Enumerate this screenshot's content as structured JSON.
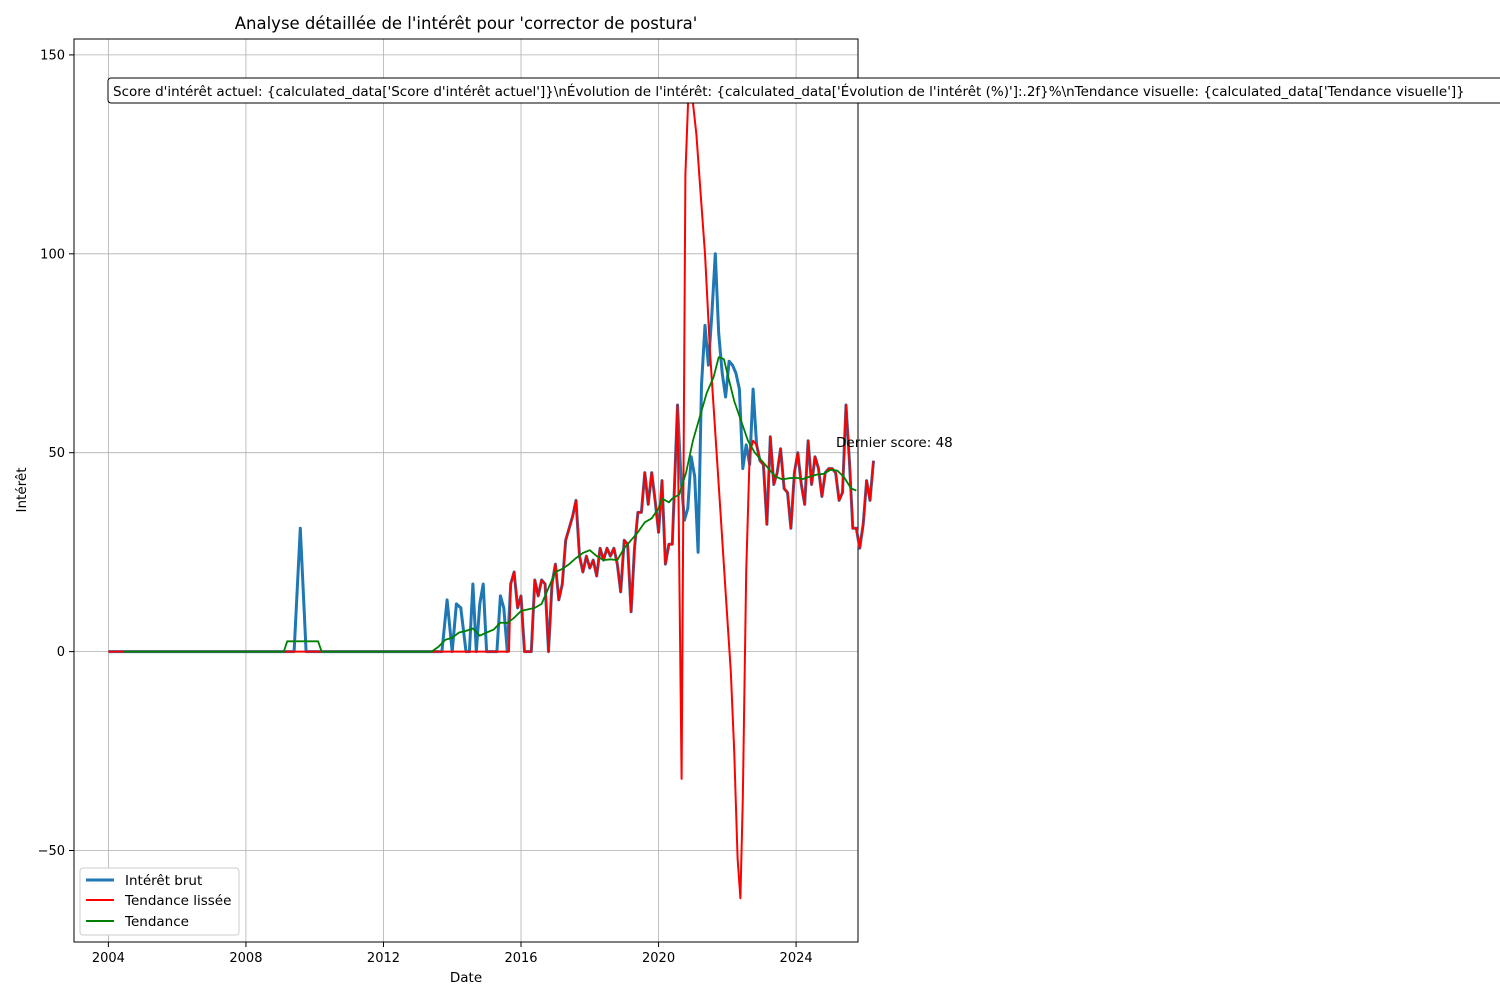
{
  "chart_data": {
    "type": "line",
    "title": "Analyse détaillée de l'intérêt pour 'corrector de postura'",
    "xlabel": "Date",
    "ylabel": "Intérêt",
    "xlim": [
      2003.0,
      2025.8
    ],
    "ylim": [
      -73,
      154
    ],
    "xticks": [
      2004,
      2008,
      2012,
      2016,
      2020,
      2024
    ],
    "yticks": [
      -50,
      0,
      50,
      100,
      150
    ],
    "grid": true,
    "legend_position": "lower-left",
    "annotation_box": "Score d'intérêt actuel: {calculated_data['Score d'intérêt actuel']}\\nÉvolution de l'intérêt: {calculated_data['Évolution de l'intérêt (%)']:.2f}%\\nTendance visuelle: {calculated_data['Tendance visuelle']}",
    "last_score_label": "Dernier score: 48",
    "series": [
      {
        "name": "Intérêt brut",
        "color": "#1f77b4",
        "points": [
          [
            2004.0,
            0
          ],
          [
            2009.4,
            0
          ],
          [
            2009.58,
            31
          ],
          [
            2009.75,
            0
          ],
          [
            2013.7,
            0
          ],
          [
            2013.85,
            13
          ],
          [
            2014.0,
            0
          ],
          [
            2014.12,
            12
          ],
          [
            2014.25,
            11
          ],
          [
            2014.4,
            0
          ],
          [
            2014.5,
            0
          ],
          [
            2014.6,
            17
          ],
          [
            2014.7,
            0
          ],
          [
            2014.8,
            12
          ],
          [
            2014.9,
            17
          ],
          [
            2015.0,
            0
          ],
          [
            2015.3,
            0
          ],
          [
            2015.4,
            14
          ],
          [
            2015.5,
            11
          ],
          [
            2015.6,
            0
          ],
          [
            2015.7,
            17
          ],
          [
            2015.8,
            20
          ],
          [
            2015.9,
            11
          ],
          [
            2016.0,
            14
          ],
          [
            2016.1,
            0
          ],
          [
            2016.3,
            0
          ],
          [
            2016.4,
            18
          ],
          [
            2016.5,
            14
          ],
          [
            2016.6,
            18
          ],
          [
            2016.7,
            17
          ],
          [
            2016.8,
            0
          ],
          [
            2016.9,
            17
          ],
          [
            2017.0,
            22
          ],
          [
            2017.1,
            13
          ],
          [
            2017.2,
            17
          ],
          [
            2017.3,
            28
          ],
          [
            2017.5,
            34
          ],
          [
            2017.6,
            38
          ],
          [
            2017.7,
            24
          ],
          [
            2017.8,
            20
          ],
          [
            2017.9,
            24
          ],
          [
            2018.0,
            21
          ],
          [
            2018.1,
            23
          ],
          [
            2018.2,
            19
          ],
          [
            2018.3,
            26
          ],
          [
            2018.4,
            23
          ],
          [
            2018.5,
            26
          ],
          [
            2018.6,
            24
          ],
          [
            2018.7,
            26
          ],
          [
            2018.8,
            22
          ],
          [
            2018.9,
            15
          ],
          [
            2019.0,
            28
          ],
          [
            2019.1,
            27
          ],
          [
            2019.2,
            10
          ],
          [
            2019.3,
            26
          ],
          [
            2019.4,
            35
          ],
          [
            2019.5,
            35
          ],
          [
            2019.6,
            45
          ],
          [
            2019.7,
            37
          ],
          [
            2019.8,
            45
          ],
          [
            2019.9,
            38
          ],
          [
            2020.0,
            30
          ],
          [
            2020.1,
            43
          ],
          [
            2020.2,
            22
          ],
          [
            2020.3,
            27
          ],
          [
            2020.4,
            27
          ],
          [
            2020.55,
            62
          ],
          [
            2020.65,
            44
          ],
          [
            2020.75,
            33
          ],
          [
            2020.85,
            36
          ],
          [
            2020.95,
            49
          ],
          [
            2021.05,
            44
          ],
          [
            2021.15,
            25
          ],
          [
            2021.25,
            67
          ],
          [
            2021.35,
            82
          ],
          [
            2021.45,
            72
          ],
          [
            2021.55,
            85
          ],
          [
            2021.65,
            100
          ],
          [
            2021.75,
            80
          ],
          [
            2021.85,
            70
          ],
          [
            2021.95,
            64
          ],
          [
            2022.05,
            73
          ],
          [
            2022.15,
            72
          ],
          [
            2022.25,
            70
          ],
          [
            2022.35,
            66
          ],
          [
            2022.45,
            46
          ],
          [
            2022.55,
            52
          ],
          [
            2022.65,
            47
          ],
          [
            2022.75,
            66
          ],
          [
            2022.85,
            52
          ],
          [
            2022.95,
            48
          ],
          [
            2023.05,
            47
          ],
          [
            2023.15,
            32
          ],
          [
            2023.25,
            54
          ],
          [
            2023.35,
            42
          ],
          [
            2023.45,
            45
          ],
          [
            2023.55,
            51
          ],
          [
            2023.65,
            41
          ],
          [
            2023.75,
            40
          ],
          [
            2023.85,
            31
          ],
          [
            2023.95,
            45
          ],
          [
            2024.05,
            50
          ],
          [
            2024.15,
            42
          ],
          [
            2024.25,
            37
          ],
          [
            2024.35,
            53
          ],
          [
            2024.45,
            42
          ],
          [
            2024.55,
            49
          ],
          [
            2024.65,
            46
          ],
          [
            2024.75,
            39
          ],
          [
            2024.85,
            45
          ],
          [
            2024.95,
            46
          ],
          [
            2025.05,
            46
          ],
          [
            2025.15,
            45
          ],
          [
            2025.25,
            38
          ],
          [
            2025.35,
            40
          ],
          [
            2025.45,
            62
          ],
          [
            2025.55,
            48
          ],
          [
            2025.65,
            31
          ],
          [
            2025.75,
            31
          ],
          [
            2025.85,
            26
          ],
          [
            2025.95,
            32
          ],
          [
            2026.05,
            43
          ],
          [
            2026.15,
            38
          ],
          [
            2026.25,
            48
          ]
        ]
      },
      {
        "name": "Tendance lissée",
        "color": "#ff0000",
        "points": [
          [
            2004.0,
            0
          ],
          [
            2015.65,
            0
          ],
          [
            2015.7,
            17
          ],
          [
            2015.8,
            20
          ],
          [
            2015.9,
            11
          ],
          [
            2016.0,
            14
          ],
          [
            2016.1,
            0
          ],
          [
            2016.3,
            0
          ],
          [
            2016.4,
            18
          ],
          [
            2016.5,
            14
          ],
          [
            2016.6,
            18
          ],
          [
            2016.7,
            17
          ],
          [
            2016.8,
            0
          ],
          [
            2016.9,
            17
          ],
          [
            2017.0,
            22
          ],
          [
            2017.1,
            13
          ],
          [
            2017.2,
            17
          ],
          [
            2017.3,
            28
          ],
          [
            2017.5,
            34
          ],
          [
            2017.6,
            38
          ],
          [
            2017.7,
            24
          ],
          [
            2017.8,
            20
          ],
          [
            2017.9,
            24
          ],
          [
            2018.0,
            21
          ],
          [
            2018.1,
            23
          ],
          [
            2018.2,
            19
          ],
          [
            2018.3,
            26
          ],
          [
            2018.4,
            23
          ],
          [
            2018.5,
            26
          ],
          [
            2018.6,
            24
          ],
          [
            2018.7,
            26
          ],
          [
            2018.8,
            22
          ],
          [
            2018.9,
            15
          ],
          [
            2019.0,
            28
          ],
          [
            2019.1,
            27
          ],
          [
            2019.2,
            10
          ],
          [
            2019.3,
            26
          ],
          [
            2019.4,
            35
          ],
          [
            2019.5,
            35
          ],
          [
            2019.6,
            45
          ],
          [
            2019.7,
            37
          ],
          [
            2019.8,
            45
          ],
          [
            2019.9,
            38
          ],
          [
            2020.0,
            30
          ],
          [
            2020.1,
            43
          ],
          [
            2020.2,
            22
          ],
          [
            2020.3,
            27
          ],
          [
            2020.4,
            27
          ],
          [
            2020.55,
            62
          ],
          [
            2020.67,
            -32
          ],
          [
            2020.78,
            120
          ],
          [
            2020.88,
            143
          ],
          [
            2021.0,
            138
          ],
          [
            2021.1,
            130
          ],
          [
            2021.2,
            118
          ],
          [
            2021.35,
            100
          ],
          [
            2021.5,
            75
          ],
          [
            2021.65,
            55
          ],
          [
            2021.8,
            35
          ],
          [
            2021.95,
            15
          ],
          [
            2022.1,
            -5
          ],
          [
            2022.2,
            -25
          ],
          [
            2022.3,
            -52
          ],
          [
            2022.38,
            -62
          ],
          [
            2022.45,
            -37
          ],
          [
            2022.55,
            20
          ],
          [
            2022.65,
            50
          ],
          [
            2022.75,
            53
          ],
          [
            2022.85,
            52
          ],
          [
            2022.95,
            48
          ],
          [
            2023.05,
            47
          ],
          [
            2023.15,
            32
          ],
          [
            2023.25,
            54
          ],
          [
            2023.35,
            42
          ],
          [
            2023.45,
            45
          ],
          [
            2023.55,
            51
          ],
          [
            2023.65,
            41
          ],
          [
            2023.75,
            40
          ],
          [
            2023.85,
            31
          ],
          [
            2023.95,
            45
          ],
          [
            2024.05,
            50
          ],
          [
            2024.15,
            42
          ],
          [
            2024.25,
            37
          ],
          [
            2024.35,
            53
          ],
          [
            2024.45,
            42
          ],
          [
            2024.55,
            49
          ],
          [
            2024.65,
            46
          ],
          [
            2024.75,
            39
          ],
          [
            2024.85,
            45
          ],
          [
            2024.95,
            46
          ],
          [
            2025.05,
            46
          ],
          [
            2025.15,
            45
          ],
          [
            2025.25,
            38
          ],
          [
            2025.35,
            40
          ],
          [
            2025.45,
            62
          ],
          [
            2025.55,
            48
          ],
          [
            2025.65,
            31
          ],
          [
            2025.75,
            31
          ],
          [
            2025.85,
            26
          ],
          [
            2025.95,
            32
          ],
          [
            2026.05,
            43
          ],
          [
            2026.15,
            38
          ],
          [
            2026.25,
            48
          ]
        ]
      },
      {
        "name": "Tendance",
        "color": "#008000",
        "points": [
          [
            2004.45,
            0
          ],
          [
            2009.1,
            0
          ],
          [
            2009.2,
            2.6
          ],
          [
            2010.1,
            2.6
          ],
          [
            2010.2,
            0
          ],
          [
            2013.4,
            0
          ],
          [
            2013.6,
            1.2
          ],
          [
            2013.8,
            3
          ],
          [
            2014.0,
            3.5
          ],
          [
            2014.2,
            4.8
          ],
          [
            2014.4,
            5.2
          ],
          [
            2014.6,
            5.8
          ],
          [
            2014.8,
            4.0
          ],
          [
            2015.0,
            4.8
          ],
          [
            2015.2,
            5.5
          ],
          [
            2015.4,
            7.3
          ],
          [
            2015.6,
            7.2
          ],
          [
            2015.8,
            8.5
          ],
          [
            2016.0,
            10.2
          ],
          [
            2016.2,
            10.6
          ],
          [
            2016.4,
            11
          ],
          [
            2016.6,
            12
          ],
          [
            2016.8,
            16
          ],
          [
            2017.0,
            20
          ],
          [
            2017.2,
            20.8
          ],
          [
            2017.4,
            22
          ],
          [
            2017.6,
            23.5
          ],
          [
            2017.8,
            24.8
          ],
          [
            2018.0,
            25.5
          ],
          [
            2018.2,
            24
          ],
          [
            2018.4,
            23
          ],
          [
            2018.6,
            23.2
          ],
          [
            2018.8,
            23
          ],
          [
            2019.0,
            26
          ],
          [
            2019.2,
            28
          ],
          [
            2019.4,
            30
          ],
          [
            2019.6,
            32.5
          ],
          [
            2019.8,
            33.5
          ],
          [
            2020.0,
            36
          ],
          [
            2020.1,
            38.5
          ],
          [
            2020.2,
            38
          ],
          [
            2020.3,
            37.5
          ],
          [
            2020.4,
            38.5
          ],
          [
            2020.6,
            39.5
          ],
          [
            2020.8,
            45
          ],
          [
            2021.0,
            53
          ],
          [
            2021.2,
            59
          ],
          [
            2021.4,
            65
          ],
          [
            2021.6,
            69
          ],
          [
            2021.75,
            74
          ],
          [
            2021.9,
            73.5
          ],
          [
            2022.0,
            70
          ],
          [
            2022.2,
            63
          ],
          [
            2022.4,
            58
          ],
          [
            2022.6,
            53
          ],
          [
            2022.8,
            50
          ],
          [
            2023.0,
            48
          ],
          [
            2023.2,
            46
          ],
          [
            2023.4,
            44
          ],
          [
            2023.6,
            43.3
          ],
          [
            2023.8,
            43.6
          ],
          [
            2024.0,
            43.7
          ],
          [
            2024.2,
            43.4
          ],
          [
            2024.4,
            44
          ],
          [
            2024.6,
            44.5
          ],
          [
            2024.8,
            44.7
          ],
          [
            2025.0,
            45.7
          ],
          [
            2025.2,
            45.5
          ],
          [
            2025.4,
            43.8
          ],
          [
            2025.6,
            41
          ],
          [
            2025.75,
            40.5
          ]
        ]
      }
    ]
  }
}
